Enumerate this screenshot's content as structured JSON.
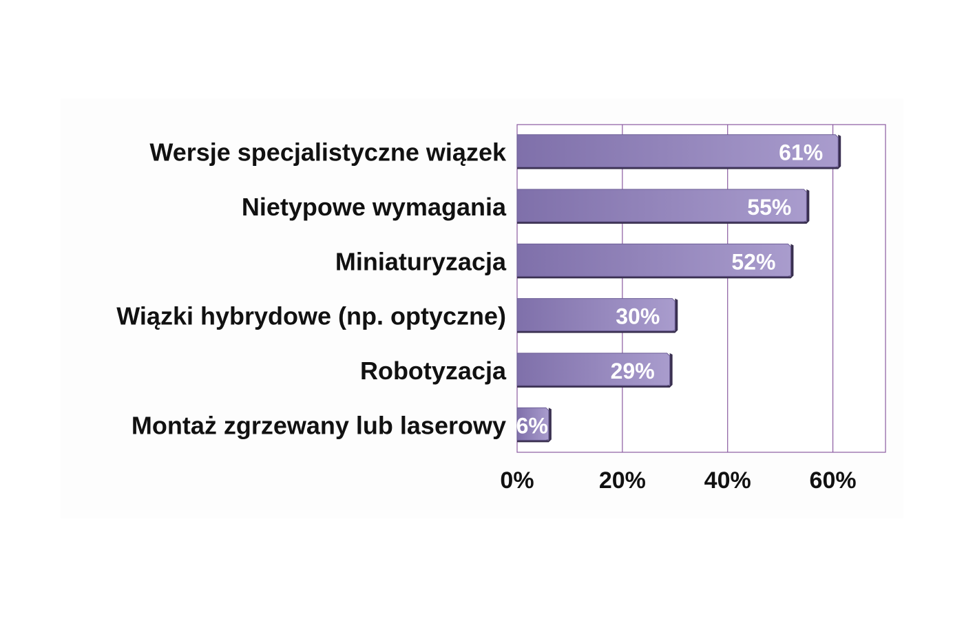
{
  "chart_data": {
    "type": "bar",
    "orientation": "horizontal",
    "categories": [
      "Wersje specjalistyczne wiązek",
      "Nietypowe wymagania",
      "Miniaturyzacja",
      "Wiązki hybrydowe (np. optyczne)",
      "Robotyzacja",
      "Montaż zgrzewany lub laserowy"
    ],
    "values": [
      61,
      55,
      52,
      30,
      29,
      6
    ],
    "data_labels": [
      "61%",
      "55%",
      "52%",
      "30%",
      "29%",
      "6%"
    ],
    "x_ticks": [
      "0%",
      "20%",
      "40%",
      "60%"
    ],
    "tick_values": [
      0,
      20,
      40,
      60
    ],
    "xlim": [
      0,
      70
    ],
    "unit": "%",
    "grid": true,
    "legend": "none",
    "title": "",
    "xlabel": "",
    "ylabel": ""
  },
  "colors": {
    "bar_left": "#7f70aa",
    "bar_right": "#a99ccd",
    "bar_shadow": "#3a3050",
    "plot_border": "#8a5aa0",
    "gridline": "#8a5aa0",
    "plot_background": "#ffffff",
    "panel_background": "#fdfdfd",
    "label_text": "#111111",
    "value_text": "#ffffff"
  }
}
